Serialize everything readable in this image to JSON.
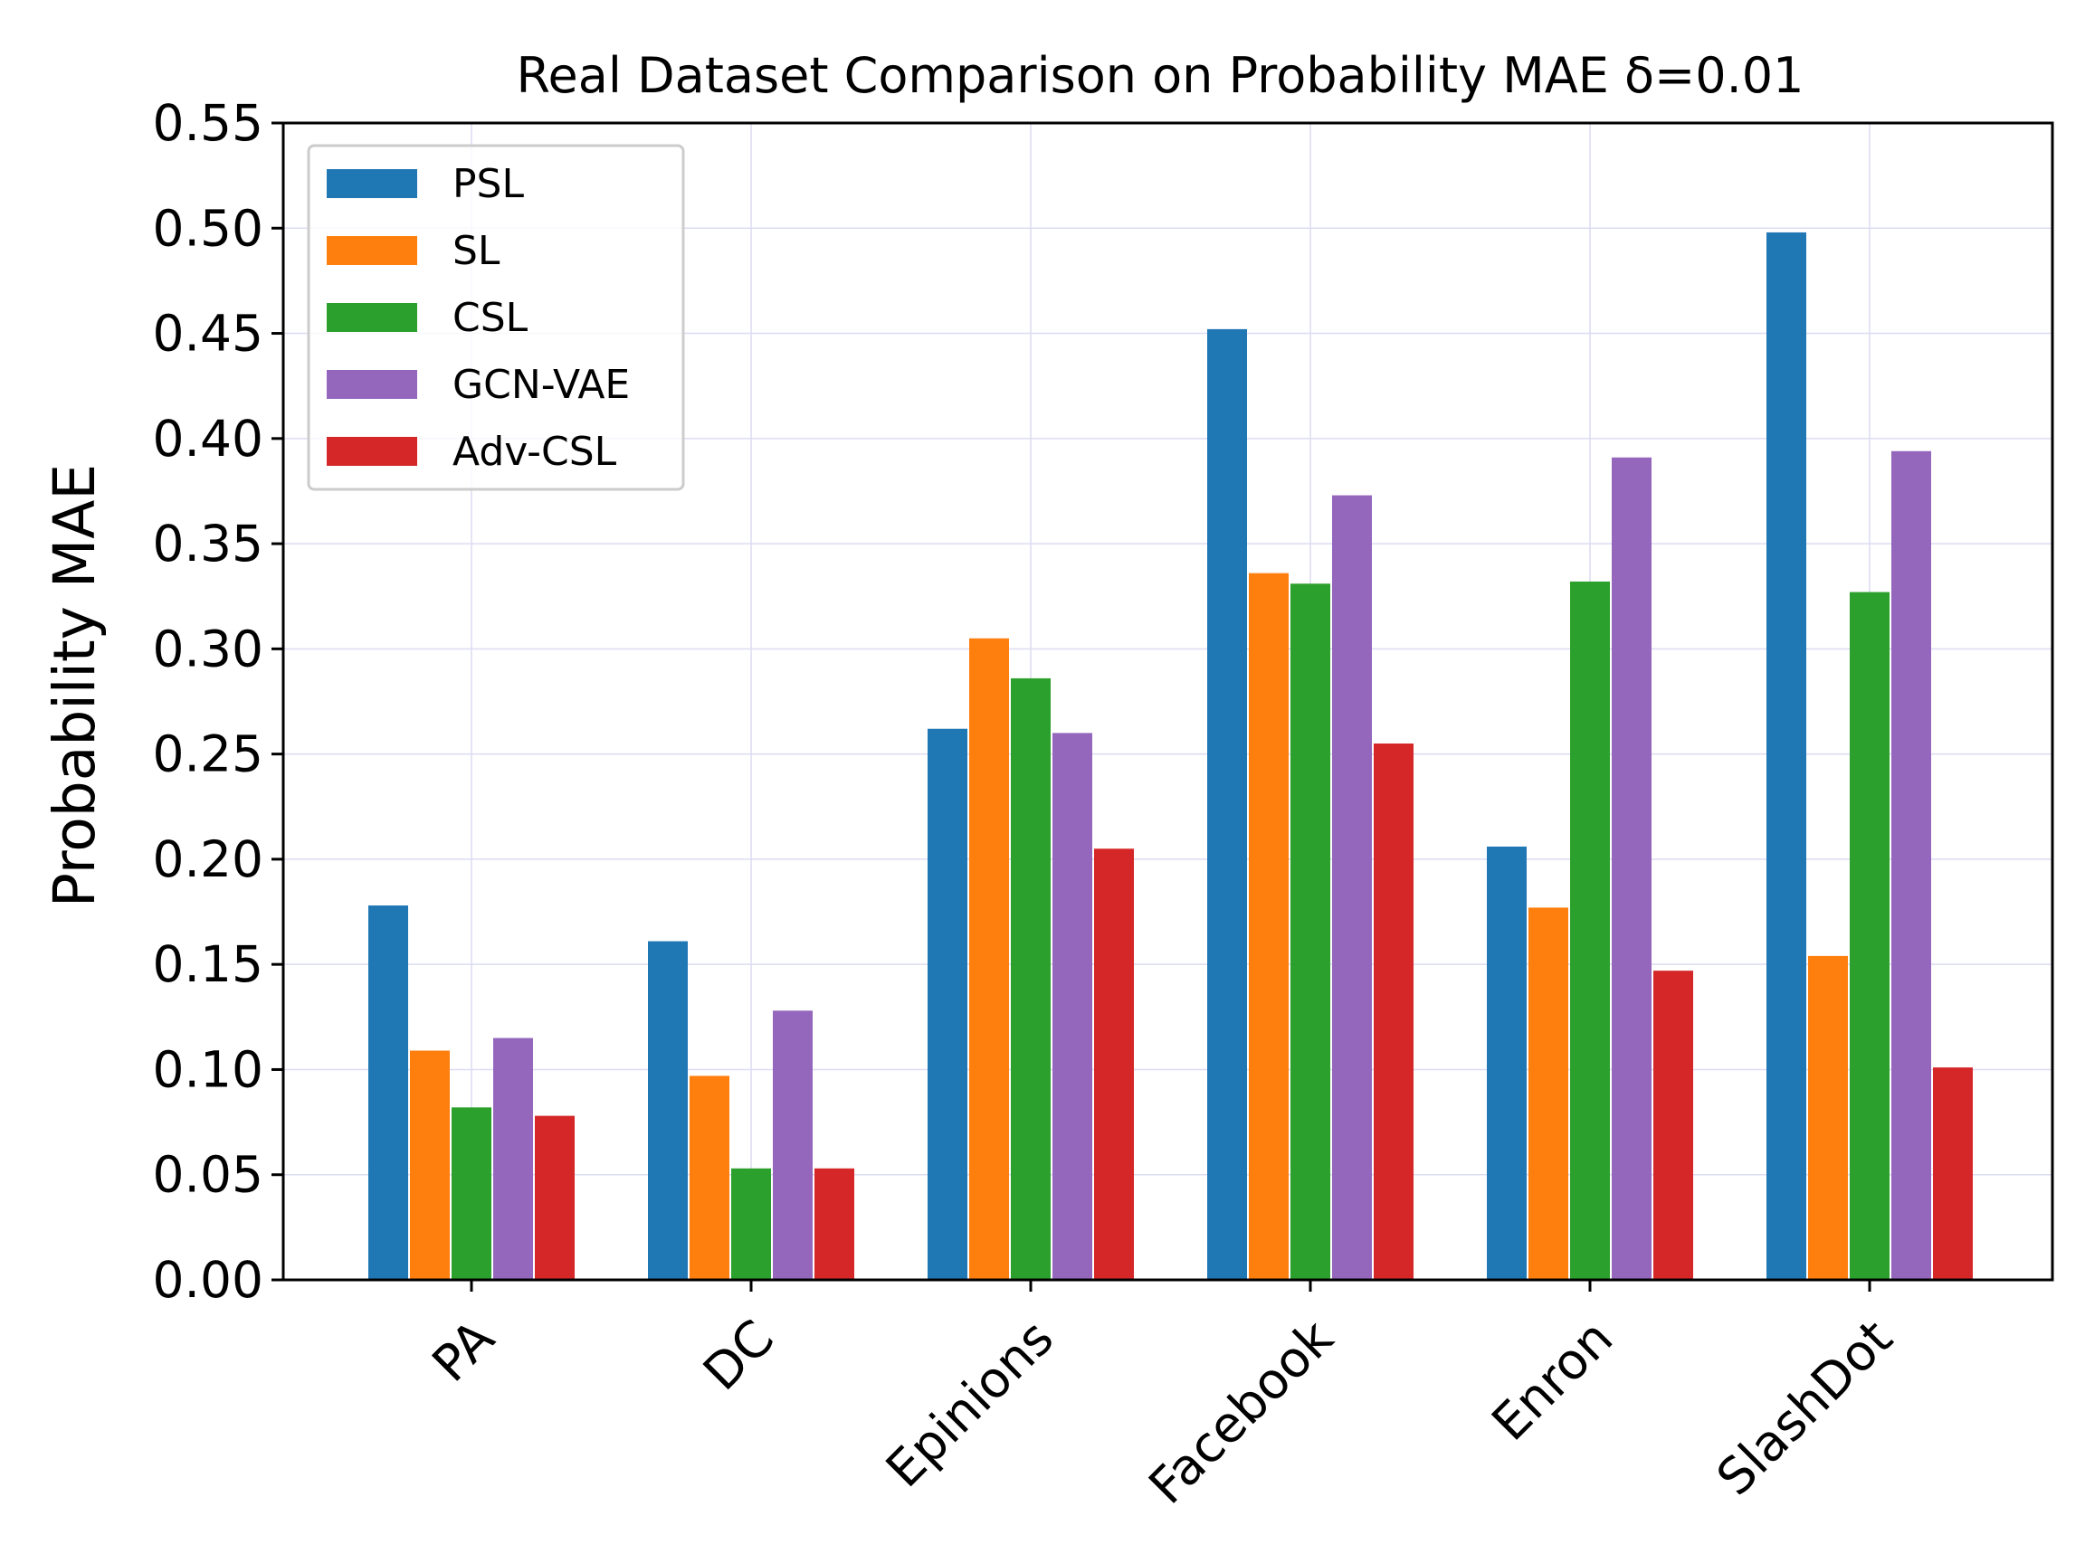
{
  "chart_data": {
    "type": "bar",
    "title": "Real Dataset Comparison on Probability MAE δ=0.01",
    "xlabel": "",
    "ylabel": "Probability MAE",
    "ylim": [
      0,
      0.55
    ],
    "yticks": [
      "0.00",
      "0.05",
      "0.10",
      "0.15",
      "0.20",
      "0.25",
      "0.30",
      "0.35",
      "0.40",
      "0.45",
      "0.50",
      "0.55"
    ],
    "grid": true,
    "legend_position": "top-left",
    "categories": [
      "PA",
      "DC",
      "Epinions",
      "Facebook",
      "Enron",
      "SlashDot"
    ],
    "series": [
      {
        "name": "PSL",
        "color": "#1f77b4",
        "values": [
          0.178,
          0.161,
          0.262,
          0.452,
          0.206,
          0.498
        ]
      },
      {
        "name": "SL",
        "color": "#ff7f0e",
        "values": [
          0.109,
          0.097,
          0.305,
          0.336,
          0.177,
          0.154
        ]
      },
      {
        "name": "CSL",
        "color": "#2ca02c",
        "values": [
          0.082,
          0.053,
          0.286,
          0.331,
          0.332,
          0.327
        ]
      },
      {
        "name": "GCN-VAE",
        "color": "#9467bd",
        "values": [
          0.115,
          0.128,
          0.26,
          0.373,
          0.391,
          0.394
        ]
      },
      {
        "name": "Adv-CSL",
        "color": "#d62728",
        "values": [
          0.078,
          0.053,
          0.205,
          0.255,
          0.147,
          0.101
        ]
      }
    ]
  }
}
